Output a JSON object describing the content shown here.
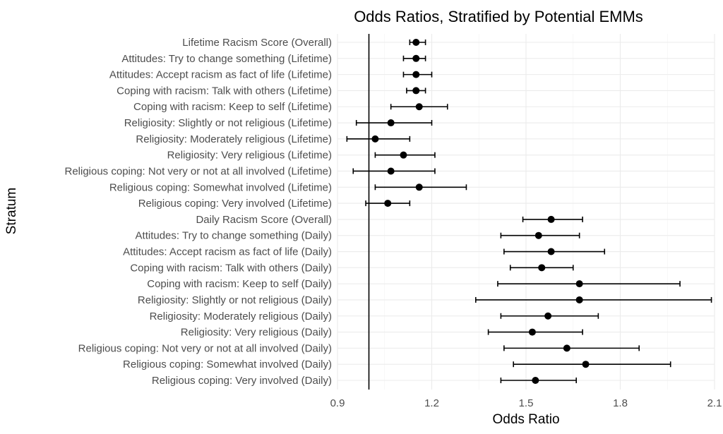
{
  "chart_data": {
    "type": "scatter",
    "title": "Odds Ratios, Stratified by Potential EMMs",
    "xlabel": "Odds Ratio",
    "ylabel": "Stratum",
    "xlim": [
      0.9,
      2.1
    ],
    "xticks": [
      "0.9",
      "1.2",
      "1.5",
      "1.8",
      "2.1"
    ],
    "xtick_values": [
      0.9,
      1.2,
      1.5,
      1.8,
      2.1
    ],
    "reference_line": 1.0,
    "grid": true,
    "legend": "none",
    "points": [
      {
        "label": "Lifetime Racism Score (Overall)",
        "or": 1.15,
        "lo": 1.13,
        "hi": 1.18
      },
      {
        "label": "Attitudes: Try to change something (Lifetime)",
        "or": 1.15,
        "lo": 1.11,
        "hi": 1.18
      },
      {
        "label": "Attitudes: Accept racism as fact of life (Lifetime)",
        "or": 1.15,
        "lo": 1.11,
        "hi": 1.2
      },
      {
        "label": "Coping with racism: Talk with others (Lifetime)",
        "or": 1.15,
        "lo": 1.12,
        "hi": 1.18
      },
      {
        "label": "Coping with racism: Keep to self (Lifetime)",
        "or": 1.16,
        "lo": 1.07,
        "hi": 1.25
      },
      {
        "label": "Religiosity: Slightly or not religious (Lifetime)",
        "or": 1.07,
        "lo": 0.96,
        "hi": 1.2
      },
      {
        "label": "Religiosity: Moderately religious (Lifetime)",
        "or": 1.02,
        "lo": 0.93,
        "hi": 1.13
      },
      {
        "label": "Religiosity: Very religious (Lifetime)",
        "or": 1.11,
        "lo": 1.02,
        "hi": 1.21
      },
      {
        "label": "Religious coping: Not very or not at all involved (Lifetime)",
        "or": 1.07,
        "lo": 0.95,
        "hi": 1.21
      },
      {
        "label": "Religious coping: Somewhat involved (Lifetime)",
        "or": 1.16,
        "lo": 1.02,
        "hi": 1.31
      },
      {
        "label": "Religious coping: Very involved (Lifetime)",
        "or": 1.06,
        "lo": 0.99,
        "hi": 1.13
      },
      {
        "label": "Daily Racism Score (Overall)",
        "or": 1.58,
        "lo": 1.49,
        "hi": 1.68
      },
      {
        "label": "Attitudes: Try to change something (Daily)",
        "or": 1.54,
        "lo": 1.42,
        "hi": 1.67
      },
      {
        "label": "Attitudes: Accept racism as fact of life (Daily)",
        "or": 1.58,
        "lo": 1.43,
        "hi": 1.75
      },
      {
        "label": "Coping with racism: Talk with others (Daily)",
        "or": 1.55,
        "lo": 1.45,
        "hi": 1.65
      },
      {
        "label": "Coping with racism: Keep to self (Daily)",
        "or": 1.67,
        "lo": 1.41,
        "hi": 1.99
      },
      {
        "label": "Religiosity: Slightly or not religious (Daily)",
        "or": 1.67,
        "lo": 1.34,
        "hi": 2.09
      },
      {
        "label": "Religiosity: Moderately religious (Daily)",
        "or": 1.57,
        "lo": 1.42,
        "hi": 1.73
      },
      {
        "label": "Religiosity: Very religious (Daily)",
        "or": 1.52,
        "lo": 1.38,
        "hi": 1.68
      },
      {
        "label": "Religious coping: Not very or not at all involved (Daily)",
        "or": 1.63,
        "lo": 1.43,
        "hi": 1.86
      },
      {
        "label": "Religious coping: Somewhat involved (Daily)",
        "or": 1.69,
        "lo": 1.46,
        "hi": 1.96
      },
      {
        "label": "Religious coping: Very involved (Daily)",
        "or": 1.53,
        "lo": 1.42,
        "hi": 1.66
      }
    ]
  }
}
